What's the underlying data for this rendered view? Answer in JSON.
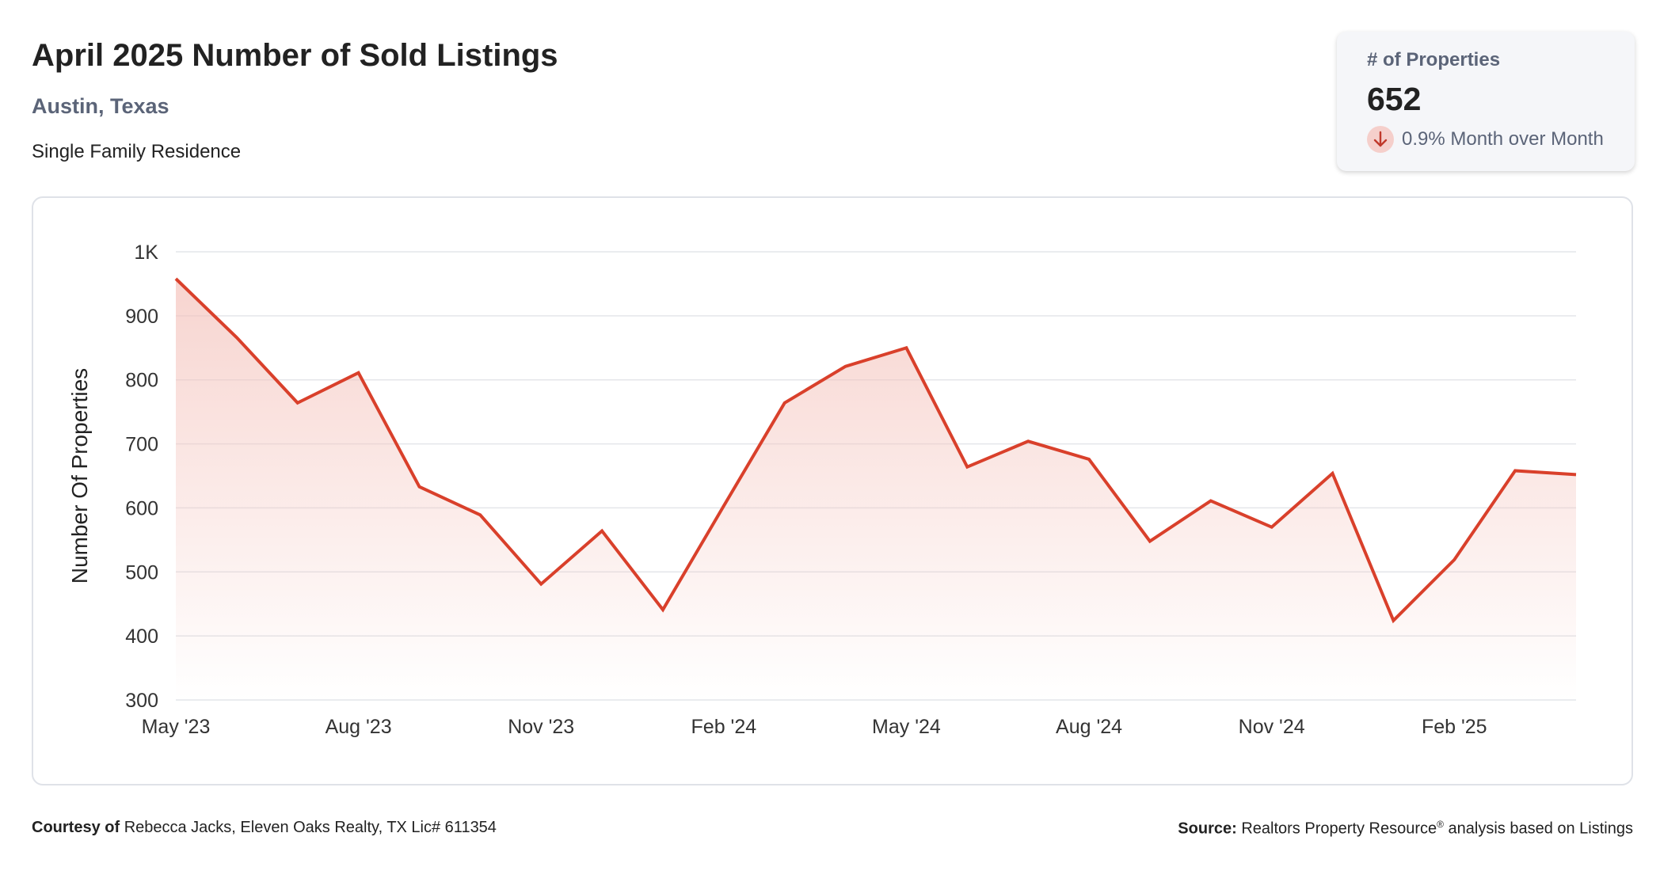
{
  "header": {
    "title": "April 2025 Number of Sold Listings",
    "location": "Austin, Texas",
    "property_type": "Single Family Residence"
  },
  "stat": {
    "label": "# of Properties",
    "value": "652",
    "change": "0.9% Month over Month",
    "direction": "down",
    "icon": "arrow-down-icon"
  },
  "footer": {
    "courtesy_label": "Courtesy of",
    "courtesy_text": "Rebecca Jacks, Eleven Oaks Realty, TX Lic# 611354",
    "source_label": "Source:",
    "source_text_1": "Realtors Property Resource",
    "source_mark": "®",
    "source_text_2": " analysis based on Listings"
  },
  "colors": {
    "line": "#d9402b",
    "fill": "#f4c2bb",
    "grid": "#e4e6ea",
    "axis_text": "#333333"
  },
  "chart_data": {
    "type": "area",
    "ylabel": "Number Of Properties",
    "xlabel": "",
    "ylim": [
      300,
      1000
    ],
    "yticks": [
      300,
      400,
      500,
      600,
      700,
      800,
      900,
      1000
    ],
    "ytick_labels": [
      "300",
      "400",
      "500",
      "600",
      "700",
      "800",
      "900",
      "1K"
    ],
    "xtick_labels": [
      "May '23",
      "Aug '23",
      "Nov '23",
      "Feb '24",
      "May '24",
      "Aug '24",
      "Nov '24",
      "Feb '25"
    ],
    "xtick_every": 3,
    "grid": true,
    "x": [
      "May '23",
      "Jun '23",
      "Jul '23",
      "Aug '23",
      "Sep '23",
      "Oct '23",
      "Nov '23",
      "Dec '23",
      "Jan '24",
      "Feb '24",
      "Mar '24",
      "Apr '24",
      "May '24",
      "Jun '24",
      "Jul '24",
      "Aug '24",
      "Sep '24",
      "Oct '24",
      "Nov '24",
      "Dec '24",
      "Jan '25",
      "Feb '25",
      "Mar '25",
      "Apr '25"
    ],
    "series": [
      {
        "values": [
          958,
          866,
          764,
          811,
          633,
          589,
          481,
          564,
          441,
          603,
          764,
          821,
          850,
          664,
          704,
          676,
          548,
          611,
          570,
          654,
          424,
          519,
          658,
          652
        ]
      }
    ]
  }
}
